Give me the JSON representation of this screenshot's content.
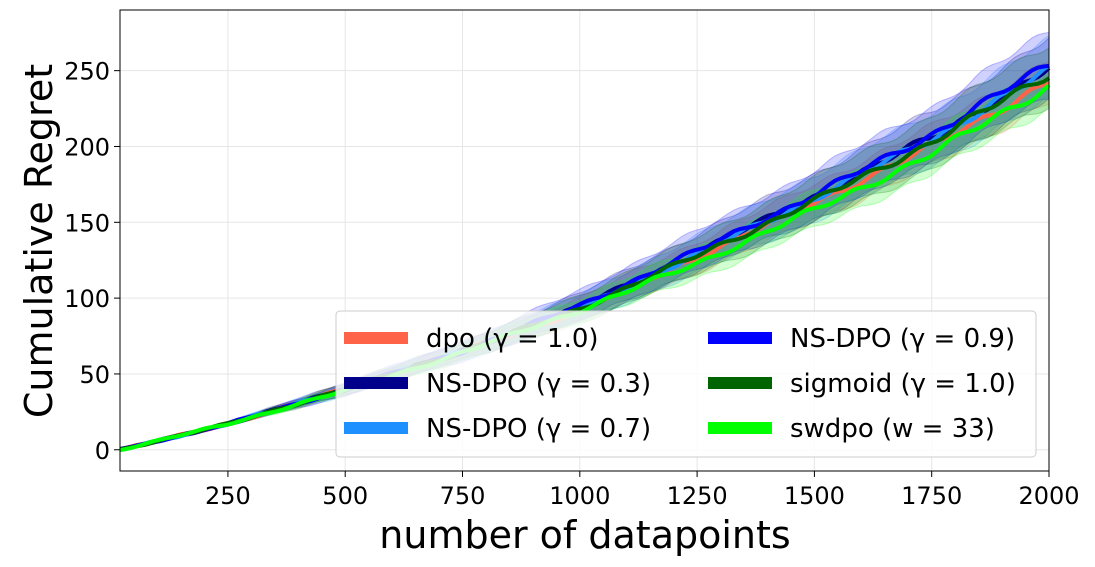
{
  "chart_data": {
    "type": "line",
    "xlabel": "number of datapoints",
    "ylabel": "Cumulative Regret",
    "xlim": [
      20,
      2000
    ],
    "ylim": [
      -14,
      290
    ],
    "xticks": [
      250,
      500,
      750,
      1000,
      1250,
      1500,
      1750,
      2000
    ],
    "yticks": [
      0,
      50,
      100,
      150,
      200,
      250
    ],
    "grid": true,
    "legend_position": "lower-right",
    "legend_columns": 2,
    "series": [
      {
        "name": "dpo (γ = 1.0)",
        "color": "#FF6347",
        "x": [
          20,
          250,
          500,
          750,
          1000,
          1250,
          1500,
          1750,
          2000
        ],
        "y": [
          0,
          17,
          40,
          65,
          92,
          127,
          163,
          200,
          243
        ],
        "band": [
          0,
          1,
          3,
          5,
          8,
          10,
          12,
          13,
          14
        ]
      },
      {
        "name": "NS-DPO (γ = 0.3)",
        "color": "#00008B",
        "x": [
          20,
          250,
          500,
          750,
          1000,
          1250,
          1500,
          1750,
          2000
        ],
        "y": [
          0,
          17,
          40,
          65,
          94,
          130,
          167,
          206,
          251
        ],
        "band": [
          0,
          1,
          4,
          6,
          9,
          12,
          15,
          17,
          20
        ]
      },
      {
        "name": "NS-DPO (γ = 0.7)",
        "color": "#1E90FF",
        "x": [
          20,
          250,
          500,
          750,
          1000,
          1250,
          1500,
          1750,
          2000
        ],
        "y": [
          0,
          17,
          40,
          65,
          93,
          129,
          166,
          205,
          250
        ],
        "band": [
          0,
          1,
          4,
          6,
          9,
          12,
          15,
          17,
          20
        ]
      },
      {
        "name": "NS-DPO (γ = 0.9)",
        "color": "#0000FF",
        "x": [
          20,
          250,
          500,
          750,
          1000,
          1250,
          1500,
          1750,
          2000
        ],
        "y": [
          0,
          17,
          40,
          65,
          95,
          131,
          168,
          208,
          254
        ],
        "band": [
          0,
          1,
          4,
          6,
          10,
          13,
          16,
          18,
          22
        ]
      },
      {
        "name": "sigmoid (γ = 1.0)",
        "color": "#006400",
        "x": [
          20,
          250,
          500,
          750,
          1000,
          1250,
          1500,
          1750,
          2000
        ],
        "y": [
          0,
          17,
          40,
          65,
          93,
          128,
          164,
          203,
          248
        ],
        "band": [
          0,
          1,
          4,
          6,
          9,
          12,
          15,
          17,
          20
        ]
      },
      {
        "name": "swdpo (w = 33)",
        "color": "#00FF00",
        "x": [
          20,
          250,
          500,
          750,
          1000,
          1250,
          1500,
          1750,
          2000
        ],
        "y": [
          0,
          17,
          39,
          64,
          92,
          123,
          158,
          195,
          240
        ],
        "band": [
          0,
          1,
          3,
          5,
          8,
          10,
          12,
          13,
          14
        ]
      }
    ]
  }
}
